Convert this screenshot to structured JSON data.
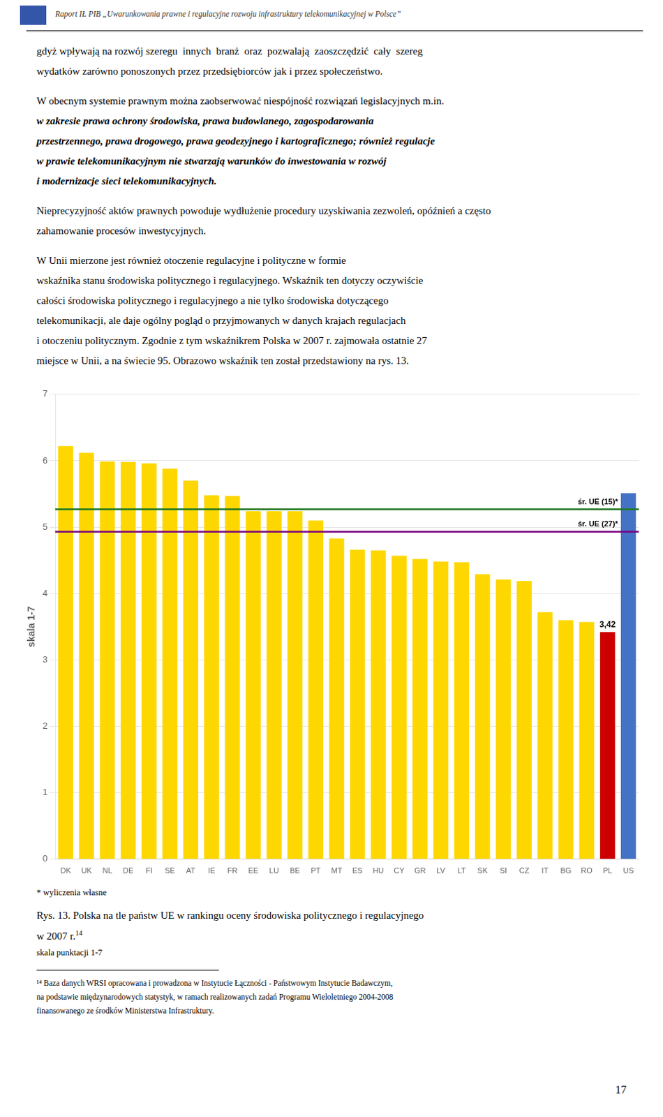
{
  "header": "Raport IŁ PIB „Uwarunkowania prawne i regulacyjne rozwoju infrastruktury telekomunikacyjnej w Polsce”",
  "paragraphs": [
    [
      "gdyż wpływają na rozwój szeregu  innych  branż  oraz  pozwalają  zaoszczędzić  cały  szereg",
      "wydatków zarówno ponoszonych przez przedsiębiorców jak i przez społeczeństwo."
    ],
    [
      "W obecnym systemie prawnym można zaobserwować niespójność rozwiązań legislacyjnych m.in.",
      "w zakresie prawa ochrony środowiska, prawa budowlanego, zagospodarowania",
      "przestrzennego, prawa drogowego, prawa geodezyjnego i kartograficznego; również regulacje",
      "w prawie telekomunikacyjnym nie stwarzają warunków do inwestowania w rozwój",
      "i modernizacje sieci telekomunikacyjnych."
    ],
    [
      "Nieprecyzyjność aktów prawnych powoduje wydłużenie procedury uzyskiwania zezwoleń, opóźnień a często",
      "zahamowanie procesów inwestycyjnych."
    ],
    [
      "W Unii mierzone jest również otoczenie regulacyjne i polityczne w formie",
      "wskaźnika stanu środowiska politycznego i regulacyjnego. Wskaźnik ten dotyczy oczywiście",
      "całości środowiska politycznego i regulacyjnego a nie tylko środowiska dotyczącego",
      "telekomunikacji, ale daje ogólny pogląd o przyjmowanych w danych krajach regulacjach",
      "i otoczeniu politycznym. Zgodnie z tym wskaźnikrem Polska w 2007 r. zajmowała ostatnie 27",
      "miejsce w Unii, a na świecie 95. Obrazowo wskaźnik ten został przedstawiony na rys. 13."
    ]
  ],
  "chart_data": {
    "type": "bar",
    "categories": [
      "DK",
      "UK",
      "NL",
      "DE",
      "FI",
      "SE",
      "AT",
      "IE",
      "FR",
      "EE",
      "LU",
      "BE",
      "PT",
      "MT",
      "ES",
      "HU",
      "CY",
      "GR",
      "LV",
      "LT",
      "SK",
      "SI",
      "CZ",
      "IT",
      "BG",
      "RO",
      "PL",
      "US"
    ],
    "values": [
      6.22,
      6.12,
      5.99,
      5.98,
      5.96,
      5.88,
      5.7,
      5.48,
      5.47,
      5.24,
      5.24,
      5.24,
      5.1,
      4.83,
      4.66,
      4.65,
      4.57,
      4.52,
      4.48,
      4.47,
      4.29,
      4.21,
      4.19,
      3.72,
      3.6,
      3.57,
      3.42,
      5.51
    ],
    "colors": [
      "#FFD700",
      "#FFD700",
      "#FFD700",
      "#FFD700",
      "#FFD700",
      "#FFD700",
      "#FFD700",
      "#FFD700",
      "#FFD700",
      "#FFD700",
      "#FFD700",
      "#FFD700",
      "#FFD700",
      "#FFD700",
      "#FFD700",
      "#FFD700",
      "#FFD700",
      "#FFD700",
      "#FFD700",
      "#FFD700",
      "#FFD700",
      "#FFD700",
      "#FFD700",
      "#FFD700",
      "#FFD700",
      "#FFD700",
      "#CC0000",
      "#4472C4"
    ],
    "ylabel": "skala 1-7",
    "ylim": [
      0,
      7
    ],
    "yticks": [
      0,
      1,
      2,
      3,
      4,
      5,
      6,
      7
    ],
    "grid": true,
    "annotations": [
      {
        "type": "hline",
        "y": 5.27,
        "label": "śr. UE (15)*",
        "color": "#217821"
      },
      {
        "type": "hline",
        "y": 4.93,
        "label": "śr. UE (27)*",
        "color": "#7B0081"
      },
      {
        "type": "text",
        "x": "PL",
        "y": 3.42,
        "label": "3,42"
      }
    ]
  },
  "chart_note": "* wyliczenia własne",
  "caption": [
    "Rys. 13. Polska na tle państw UE w rankingu oceny środowiska politycznego i regulacyjnego",
    "w 2007 r."
  ],
  "caption_superscript": "14",
  "caption_note": "skala punktacji 1-7",
  "footnotes": [
    "¹⁴ Baza danych WRSI opracowana i prowadzona w Instytucie Łączności - Państwowym Instytucie Badawczym,",
    "na podstawie międzynarodowych statystyk, w ramach realizowanych zadań Programu Wieloletniego 2004-2008",
    "finansowanego ze środków Ministerstwa Infrastruktury."
  ],
  "page_number": "17"
}
